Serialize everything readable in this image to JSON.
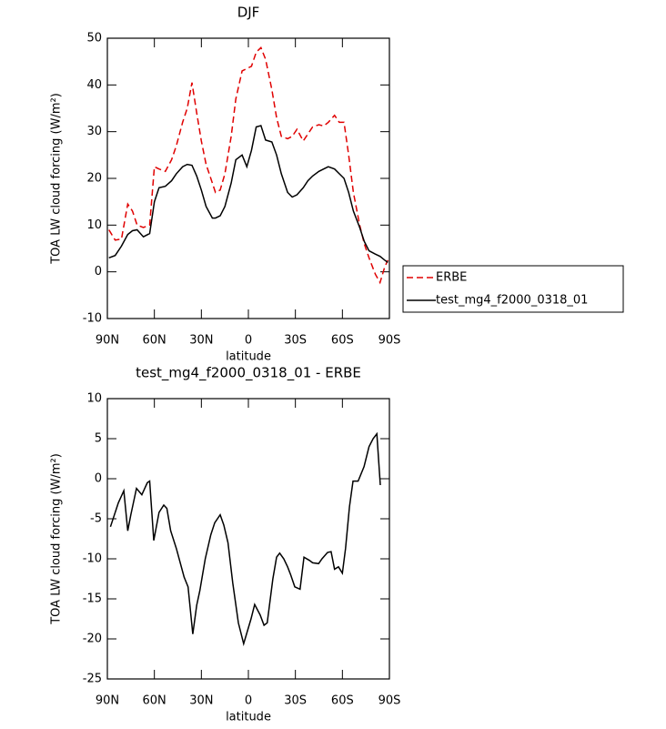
{
  "chart_data": [
    {
      "type": "line",
      "title": "DJF",
      "xlabel": "latitude",
      "ylabel": "TOA LW cloud forcing (W/m²)",
      "x": [
        89,
        85,
        81,
        77,
        74,
        71,
        67,
        63,
        60,
        57,
        53,
        49,
        46,
        42,
        39,
        36,
        33,
        30,
        27,
        23,
        21,
        18,
        15,
        11,
        8,
        4,
        1,
        -2,
        -5,
        -8,
        -11,
        -15,
        -18,
        -21,
        -25,
        -28,
        -31,
        -35,
        -38,
        -41,
        -45,
        -48,
        -51,
        -55,
        -58,
        -61,
        -64,
        -67,
        -71,
        -74,
        -77,
        -81,
        -84,
        -87,
        -89
      ],
      "series": [
        {
          "name": "ERBE",
          "color": "#e00000",
          "style": "dashed",
          "values": [
            9,
            6.8,
            7,
            14.5,
            13,
            10,
            9.5,
            10,
            22.5,
            22,
            21.5,
            24,
            27,
            32,
            35,
            40.5,
            34,
            28,
            23,
            19,
            17,
            17.5,
            21,
            29,
            37,
            43,
            43.5,
            44,
            47,
            48,
            45.5,
            39,
            33,
            29,
            28.5,
            29,
            30.5,
            28,
            29.5,
            31,
            31.5,
            31.2,
            32,
            33.5,
            32,
            32,
            25,
            17,
            10,
            6,
            3,
            -0.5,
            -2.3,
            1,
            2.5
          ]
        },
        {
          "name": "test_mg4_f2000_0318_01",
          "color": "#000000",
          "style": "solid",
          "values": [
            3,
            3.5,
            5.5,
            8,
            8.8,
            9,
            7.5,
            8.2,
            15,
            18,
            18.3,
            19.5,
            21,
            22.5,
            23,
            22.8,
            20.5,
            17.5,
            14,
            11.5,
            11.5,
            12,
            14,
            19,
            24,
            25,
            22.5,
            26,
            31,
            31.3,
            28.2,
            27.8,
            25,
            21,
            17,
            16,
            16.5,
            18,
            19.5,
            20.5,
            21.5,
            22,
            22.5,
            22,
            21,
            20,
            17,
            13,
            9.5,
            6.5,
            4.5,
            3.8,
            3.3,
            2.5,
            2
          ]
        }
      ],
      "xlim": [
        90,
        -90
      ],
      "xticks": [
        {
          "value": 90,
          "label": "90N"
        },
        {
          "value": 60,
          "label": "60N"
        },
        {
          "value": 30,
          "label": "30N"
        },
        0,
        {
          "value": -30,
          "label": "30S"
        },
        {
          "value": -60,
          "label": "60S"
        },
        {
          "value": -90,
          "label": "90S"
        }
      ],
      "ylim": [
        -10,
        50
      ],
      "yticks": [
        -10,
        0,
        10,
        20,
        30,
        40,
        50
      ],
      "legend": "outside right"
    },
    {
      "type": "line",
      "title": "test_mg4_f2000_0318_01 - ERBE",
      "xlabel": "latitude",
      "ylabel": "TOA LW cloud forcing (W/m²)",
      "x": [
        88,
        83,
        79.5,
        77,
        75,
        71.4,
        68,
        64.5,
        63,
        60.4,
        57,
        54,
        52,
        49.6,
        46,
        41,
        38.5,
        35.5,
        33,
        31,
        27.5,
        24,
        21.5,
        18,
        15.7,
        13,
        10,
        6.4,
        3,
        -1.7,
        -4,
        -7.5,
        -10,
        -12,
        -15.6,
        -18,
        -20,
        -22.6,
        -25,
        -27,
        -29.6,
        -33,
        -35.5,
        -39,
        -41,
        -44.8,
        -47,
        -50.5,
        -52.8,
        -55,
        -57.5,
        -60,
        -62,
        -64.5,
        -66.8,
        -70,
        -73.8,
        -77,
        -79.6,
        -82,
        -84.2
      ],
      "series": [
        {
          "name": null,
          "color": "#000000",
          "style": "solid",
          "values": [
            -6,
            -3,
            -1.5,
            -6.5,
            -4.5,
            -1.2,
            -2,
            -0.5,
            -0.3,
            -7.7,
            -4.2,
            -3.3,
            -3.7,
            -6.5,
            -8.7,
            -12.3,
            -13.5,
            -19.4,
            -15.8,
            -14,
            -10,
            -7,
            -5.5,
            -4.5,
            -5.8,
            -8,
            -13,
            -18,
            -20.6,
            -17.5,
            -15.7,
            -17,
            -18.3,
            -18,
            -12.5,
            -9.8,
            -9.3,
            -10,
            -11,
            -12,
            -13.5,
            -13.8,
            -9.8,
            -10.2,
            -10.5,
            -10.6,
            -10,
            -9.2,
            -9.1,
            -11.3,
            -11,
            -11.8,
            -8.7,
            -3.5,
            -0.3,
            -0.3,
            1.5,
            4,
            5,
            5.6,
            -0.8
          ]
        }
      ],
      "xlim": [
        90,
        -90
      ],
      "xticks": [
        {
          "value": 90,
          "label": "90N"
        },
        {
          "value": 60,
          "label": "60N"
        },
        {
          "value": 30,
          "label": "30N"
        },
        0,
        {
          "value": -30,
          "label": "30S"
        },
        {
          "value": -60,
          "label": "60S"
        },
        {
          "value": -90,
          "label": "90S"
        }
      ],
      "ylim": [
        -25,
        10
      ],
      "yticks": [
        -25,
        -20,
        -15,
        -10,
        -5,
        0,
        5,
        10
      ]
    }
  ]
}
